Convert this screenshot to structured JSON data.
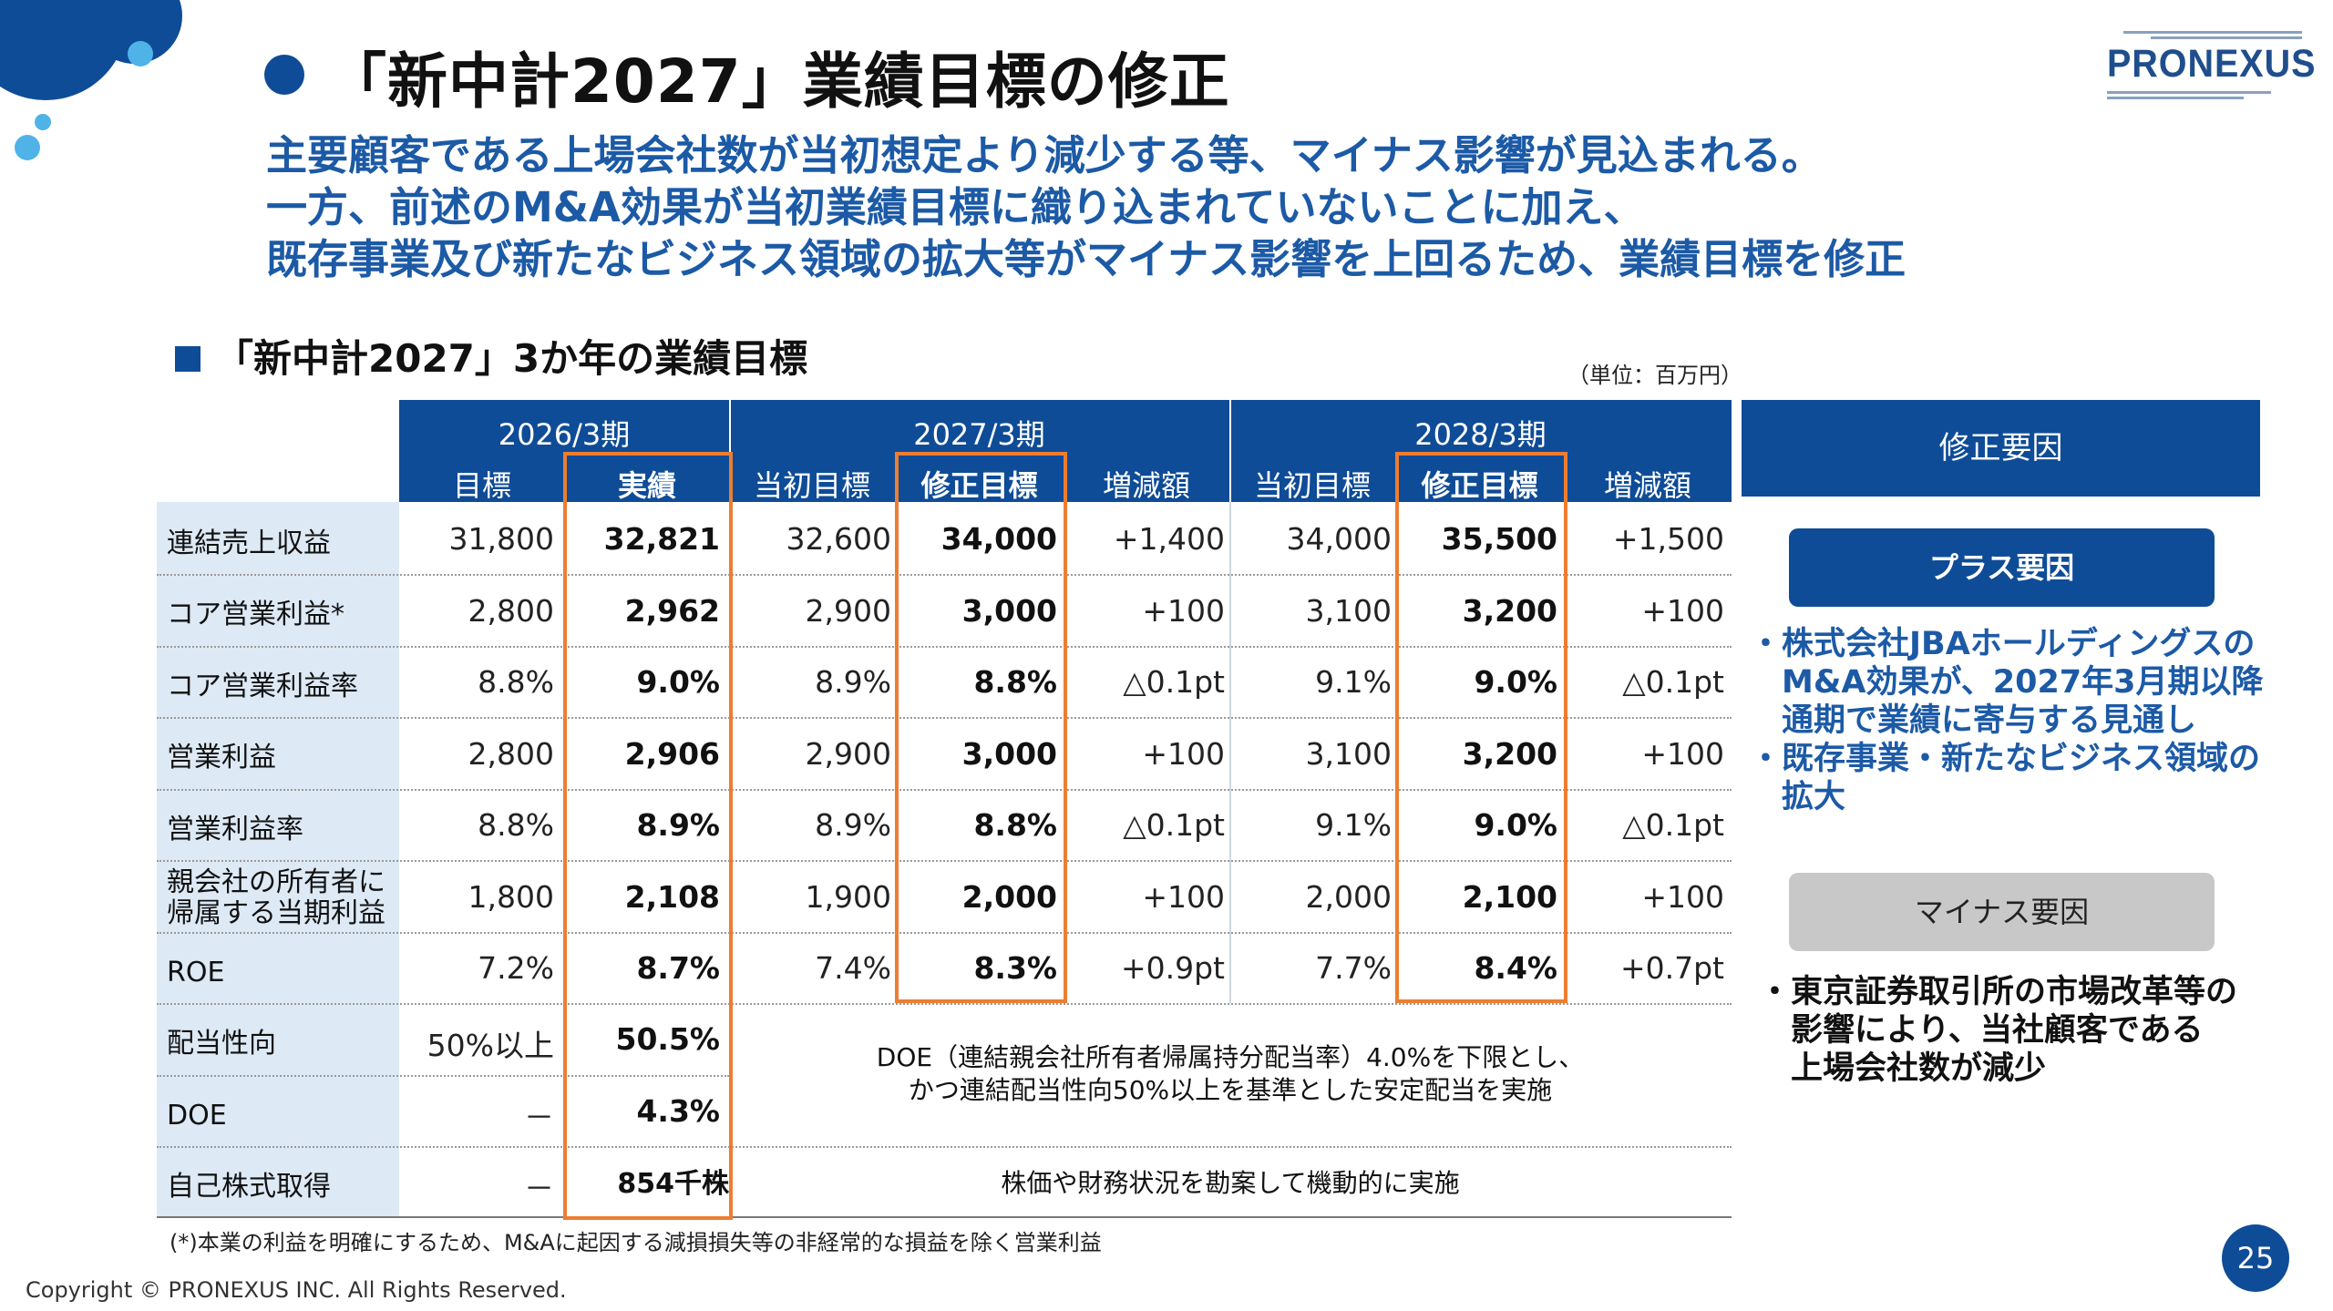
{
  "title": "「新中計2027」業績目標の修正",
  "logo": "PRONEXUS",
  "lead": [
    "主要顧客である上場会社数が当初想定より減少する等、マイナス影響が見込まれる。",
    "一方、前述のM&A効果が当初業績目標に織り込まれていないことに加え、",
    "既存事業及び新たなビジネス領域の拡大等がマイナス影響を上回るため、業績目標を修正"
  ],
  "subtitle": "「新中計2027」3か年の業績目標",
  "unit": "（単位：百万円）",
  "table": {
    "periods": [
      "2026/3期",
      "2027/3期",
      "2028/3期"
    ],
    "subheaders": [
      "目標",
      "実績",
      "当初目標",
      "修正目標",
      "増減額",
      "当初目標",
      "修正目標",
      "増減額"
    ],
    "rows": [
      {
        "label": "連結売上収益",
        "values": [
          "31,800",
          "32,821",
          "32,600",
          "34,000",
          "+1,400",
          "34,000",
          "35,500",
          "+1,500"
        ]
      },
      {
        "label": "コア営業利益*",
        "values": [
          "2,800",
          "2,962",
          "2,900",
          "3,000",
          "+100",
          "3,100",
          "3,200",
          "+100"
        ]
      },
      {
        "label": "コア営業利益率",
        "values": [
          "8.8%",
          "9.0%",
          "8.9%",
          "8.8%",
          "△0.1pt",
          "9.1%",
          "9.0%",
          "△0.1pt"
        ]
      },
      {
        "label": "営業利益",
        "values": [
          "2,800",
          "2,906",
          "2,900",
          "3,000",
          "+100",
          "3,100",
          "3,200",
          "+100"
        ]
      },
      {
        "label": "営業利益率",
        "values": [
          "8.8%",
          "8.9%",
          "8.9%",
          "8.8%",
          "△0.1pt",
          "9.1%",
          "9.0%",
          "△0.1pt"
        ]
      },
      {
        "label": "親会社の所有者に\n帰属する当期利益",
        "values": [
          "1,800",
          "2,108",
          "1,900",
          "2,000",
          "+100",
          "2,000",
          "2,100",
          "+100"
        ]
      },
      {
        "label": "ROE",
        "values": [
          "7.2%",
          "8.7%",
          "7.4%",
          "8.3%",
          "+0.9pt",
          "7.7%",
          "8.4%",
          "+0.7pt"
        ]
      },
      {
        "label": "配当性向",
        "values": [
          "50%以上",
          "50.5%"
        ]
      },
      {
        "label": "DOE",
        "values": [
          "－",
          "4.3%"
        ]
      },
      {
        "label": "自己株式取得",
        "values": [
          "－",
          "854千株"
        ]
      }
    ],
    "note_dividend": [
      "DOE（連結親会社所有者帰属持分配当率）4.0%を下限とし、",
      "かつ連結配当性向50%以上を基準とした安定配当を実施"
    ],
    "note_buyback": "株価や財務状況を勘案して機動的に実施"
  },
  "reasons": {
    "header": "修正要因",
    "plus_label": "プラス要因",
    "plus_items": [
      "・株式会社JBAホールディングスの",
      "　M&A効果が、2027年3月期以降",
      "　通期で業績に寄与する見通し",
      "・既存事業・新たなビジネス領域の",
      "　拡大"
    ],
    "minus_label": "マイナス要因",
    "minus_items": [
      "・東京証券取引所の市場改革等の",
      "　影響により、当社顧客である",
      "　上場会社数が減少"
    ]
  },
  "footnote": "(*)本業の利益を明確にするため、M&Aに起因する減損損失等の非経常的な損益を除く営業利益",
  "copyright": "Copyright © PRONEXUS INC. All Rights Reserved.",
  "page_number": "25",
  "colors": {
    "brand_blue": "#0f4c97",
    "lead_blue": "#1c5aa6",
    "highlight_orange": "#ed7d31",
    "label_bg": "#dde9f5"
  }
}
